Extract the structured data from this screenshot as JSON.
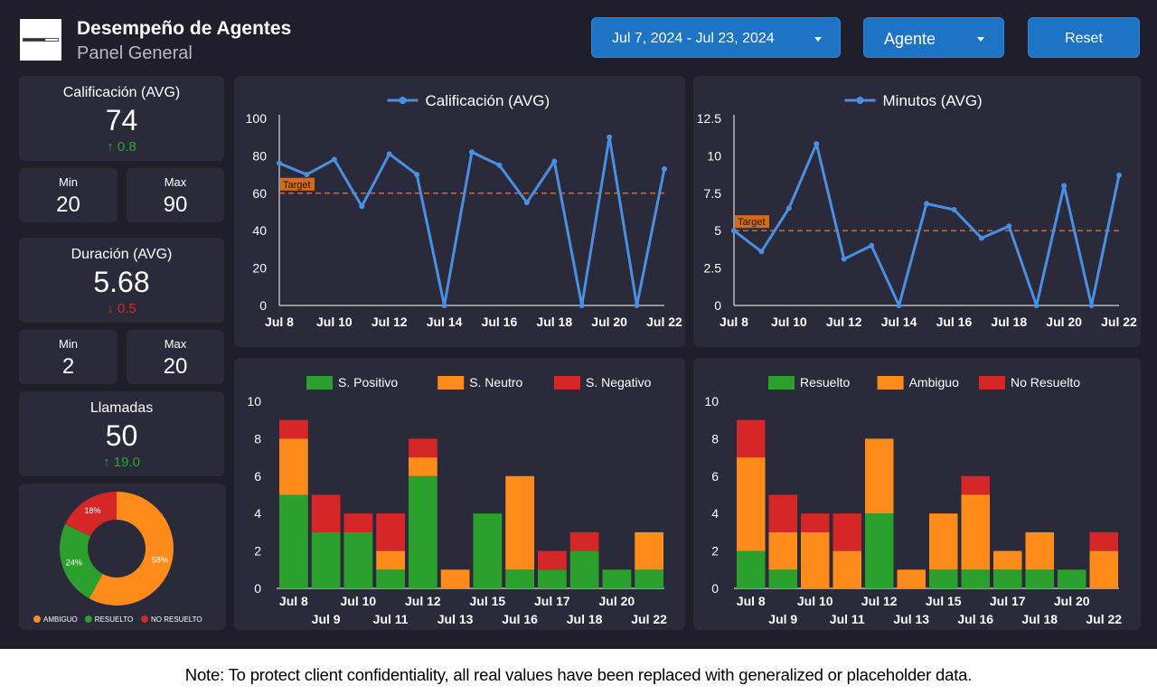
{
  "header": {
    "title": "Desempeño de Agentes",
    "subtitle": "Panel General"
  },
  "controls": {
    "date_range": "Jul 7, 2024 - Jul 23, 2024",
    "agent_label": "Agente",
    "reset_label": "Reset"
  },
  "kpis": {
    "rating": {
      "label": "Calificación (AVG)",
      "value": "74",
      "delta": "0.8",
      "delta_direction": "up",
      "min_label": "Min",
      "min": "20",
      "max_label": "Max",
      "max": "90"
    },
    "duration": {
      "label": "Duración (AVG)",
      "value": "5.68",
      "delta": "0.5",
      "delta_direction": "down",
      "min_label": "Min",
      "min": "2",
      "max_label": "Max",
      "max": "20"
    },
    "calls": {
      "label": "Llamadas",
      "value": "50",
      "delta": "19.0",
      "delta_direction": "up"
    }
  },
  "colors": {
    "line": "#4a90e2",
    "target": "#d46a1c",
    "green": "#2ca02c",
    "orange": "#ff8c1a",
    "red": "#d62728",
    "panel": "#2b2a3a",
    "bg": "#1f1e2a",
    "accent": "#1e74c4"
  },
  "chart_data": [
    {
      "id": "rating_line",
      "type": "line",
      "title": "Calificación (AVG)",
      "x": [
        "Jul 8",
        "Jul 9",
        "Jul 10",
        "Jul 11",
        "Jul 12",
        "Jul 13",
        "Jul 14",
        "Jul 15",
        "Jul 16",
        "Jul 17",
        "Jul 18",
        "Jul 19",
        "Jul 20",
        "Jul 21",
        "Jul 22"
      ],
      "x_ticks": [
        "Jul 8",
        "Jul 10",
        "Jul 12",
        "Jul 14",
        "Jul 16",
        "Jul 18",
        "Jul 20",
        "Jul 22"
      ],
      "series": [
        {
          "name": "Calificación (AVG)",
          "values": [
            76,
            70,
            78,
            53,
            81,
            70,
            0,
            82,
            75,
            55,
            77,
            0,
            90,
            0,
            73
          ]
        }
      ],
      "ylim": [
        0,
        100
      ],
      "yticks": [
        0,
        20,
        40,
        60,
        80,
        100
      ],
      "target": {
        "label": "Target",
        "value": 60
      }
    },
    {
      "id": "minutes_line",
      "type": "line",
      "title": "Minutos (AVG)",
      "x": [
        "Jul 8",
        "Jul 9",
        "Jul 10",
        "Jul 11",
        "Jul 12",
        "Jul 13",
        "Jul 14",
        "Jul 15",
        "Jul 16",
        "Jul 17",
        "Jul 18",
        "Jul 19",
        "Jul 20",
        "Jul 21",
        "Jul 22"
      ],
      "x_ticks": [
        "Jul 8",
        "Jul 10",
        "Jul 12",
        "Jul 14",
        "Jul 16",
        "Jul 18",
        "Jul 20",
        "Jul 22"
      ],
      "series": [
        {
          "name": "Minutos (AVG)",
          "values": [
            5,
            3.6,
            6.5,
            10.8,
            3.1,
            4,
            0,
            6.8,
            6.4,
            4.5,
            5.3,
            0,
            8,
            0,
            8.7
          ]
        }
      ],
      "ylim": [
        0,
        12.5
      ],
      "yticks": [
        "0",
        "2.5",
        "5",
        "7.5",
        "10",
        "12.5"
      ],
      "target": {
        "label": "Target",
        "value": 5
      }
    },
    {
      "id": "sentiment_bars",
      "type": "bar",
      "stacked": true,
      "categories": [
        "Jul 8",
        "Jul 9",
        "Jul 10",
        "Jul 11",
        "Jul 12",
        "Jul 13",
        "Jul 15",
        "Jul 16",
        "Jul 17",
        "Jul 18",
        "Jul 20",
        "Jul 22"
      ],
      "series": [
        {
          "name": "S. Positivo",
          "color": "#2ca02c",
          "values": [
            5,
            3,
            3,
            1,
            6,
            0,
            4,
            1,
            1,
            2,
            1,
            1
          ]
        },
        {
          "name": "S. Neutro",
          "color": "#ff8c1a",
          "values": [
            3,
            0,
            0,
            1,
            1,
            1,
            0,
            5,
            0,
            0,
            0,
            2
          ]
        },
        {
          "name": "S. Negativo",
          "color": "#d62728",
          "values": [
            1,
            2,
            1,
            2,
            1,
            0,
            0,
            0,
            1,
            1,
            0,
            0
          ]
        }
      ],
      "ylim": [
        0,
        10
      ],
      "yticks": [
        0,
        2,
        4,
        6,
        8,
        10
      ],
      "legend": "top"
    },
    {
      "id": "resolution_bars",
      "type": "bar",
      "stacked": true,
      "categories": [
        "Jul 8",
        "Jul 9",
        "Jul 10",
        "Jul 11",
        "Jul 12",
        "Jul 13",
        "Jul 15",
        "Jul 16",
        "Jul 17",
        "Jul 18",
        "Jul 20",
        "Jul 22"
      ],
      "series": [
        {
          "name": "Resuelto",
          "color": "#2ca02c",
          "values": [
            2,
            1,
            0,
            0,
            4,
            0,
            1,
            1,
            1,
            1,
            1,
            0
          ]
        },
        {
          "name": "Ambiguo",
          "color": "#ff8c1a",
          "values": [
            5,
            2,
            3,
            2,
            4,
            1,
            3,
            4,
            1,
            2,
            0,
            2
          ]
        },
        {
          "name": "No Resuelto",
          "color": "#d62728",
          "values": [
            2,
            2,
            1,
            2,
            0,
            0,
            0,
            1,
            0,
            0,
            0,
            1
          ]
        }
      ],
      "ylim": [
        0,
        10
      ],
      "yticks": [
        0,
        2,
        4,
        6,
        8,
        10
      ],
      "legend": "top"
    },
    {
      "id": "resolution_donut",
      "type": "pie",
      "donut": true,
      "slices": [
        {
          "name": "AMBIGUO",
          "value": 58,
          "label": "58%",
          "color": "#ff8c1a"
        },
        {
          "name": "RESUELTO",
          "value": 24,
          "label": "24%",
          "color": "#2ca02c"
        },
        {
          "name": "NO RESUELTO",
          "value": 18,
          "label": "18%",
          "color": "#d62728"
        }
      ],
      "legend": "bottom"
    }
  ],
  "footer": {
    "note": "Note: To protect client confidentiality, all real values have been replaced with generalized or placeholder data."
  }
}
